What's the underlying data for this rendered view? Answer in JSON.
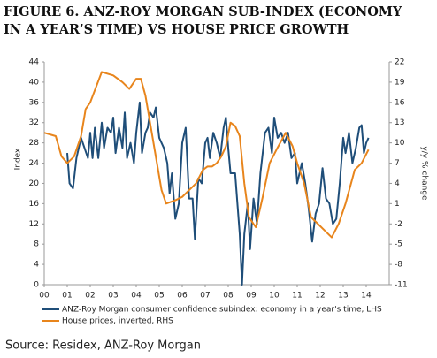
{
  "chart_data": {
    "type": "line",
    "title": [
      "FIGURE 6. ANZ-ROY MORGAN SUB-INDEX (ECONOMY",
      "IN A YEAR’S TIME) VS HOUSE PRICE GROWTH"
    ],
    "ylabel": "Index",
    "y2label": "y/y % change",
    "source": "Source: Residex, ANZ-Roy Morgan",
    "xlim": [
      2000,
      2015
    ],
    "xticks": [
      {
        "value": 2000,
        "label": "00"
      },
      {
        "value": 2001,
        "label": "01"
      },
      {
        "value": 2002,
        "label": "02"
      },
      {
        "value": 2003,
        "label": "03"
      },
      {
        "value": 2004,
        "label": "04"
      },
      {
        "value": 2005,
        "label": "05"
      },
      {
        "value": 2006,
        "label": "06"
      },
      {
        "value": 2007,
        "label": "07"
      },
      {
        "value": 2008,
        "label": "08"
      },
      {
        "value": 2009,
        "label": "09"
      },
      {
        "value": 2010,
        "label": "10"
      },
      {
        "value": 2011,
        "label": "11"
      },
      {
        "value": 2012,
        "label": "12"
      },
      {
        "value": 2013,
        "label": "13"
      },
      {
        "value": 2014,
        "label": "14"
      }
    ],
    "ylim": [
      0,
      44
    ],
    "yticks": [
      0,
      4,
      8,
      12,
      16,
      20,
      24,
      28,
      32,
      36,
      40,
      44
    ],
    "y2lim": [
      -11,
      22
    ],
    "y2ticks": [
      -11,
      -8,
      -5,
      -2,
      1,
      4,
      7,
      10,
      13,
      16,
      19,
      22
    ],
    "legend": "bottom",
    "series": [
      {
        "name": "ANZ-Roy Morgan consumer confidence subindex: economy in a year's time, LHS",
        "color": "#1f4e79",
        "axis": "y",
        "x": [
          2001.0,
          2001.1,
          2001.25,
          2001.4,
          2001.6,
          2001.75,
          2001.9,
          2002.0,
          2002.1,
          2002.2,
          2002.35,
          2002.5,
          2002.6,
          2002.75,
          2002.9,
          2003.0,
          2003.1,
          2003.25,
          2003.4,
          2003.5,
          2003.6,
          2003.75,
          2003.9,
          2004.0,
          2004.15,
          2004.25,
          2004.4,
          2004.5,
          2004.6,
          2004.75,
          2004.85,
          2005.0,
          2005.2,
          2005.35,
          2005.45,
          2005.55,
          2005.7,
          2005.85,
          2006.0,
          2006.15,
          2006.3,
          2006.45,
          2006.55,
          2006.7,
          2006.85,
          2007.0,
          2007.1,
          2007.2,
          2007.35,
          2007.5,
          2007.65,
          2007.8,
          2007.9,
          2008.0,
          2008.1,
          2008.3,
          2008.5,
          2008.6,
          2008.7,
          2008.85,
          2008.95,
          2009.1,
          2009.25,
          2009.4,
          2009.6,
          2009.75,
          2009.9,
          2010.0,
          2010.15,
          2010.3,
          2010.45,
          2010.6,
          2010.75,
          2010.9,
          2011.0,
          2011.2,
          2011.35,
          2011.5,
          2011.65,
          2011.8,
          2011.95,
          2012.1,
          2012.25,
          2012.4,
          2012.55,
          2012.7,
          2012.85,
          2013.0,
          2013.1,
          2013.25,
          2013.4,
          2013.55,
          2013.7,
          2013.8,
          2013.9,
          2014.0,
          2014.1
        ],
        "values": [
          26,
          20,
          19,
          25,
          29,
          27,
          25,
          30,
          25,
          31,
          25,
          32,
          27,
          31,
          30,
          33,
          26,
          31,
          27,
          34,
          25,
          28,
          24,
          30,
          36,
          26,
          30,
          31,
          34,
          33,
          35,
          29,
          27,
          24,
          18,
          22,
          13,
          16,
          28,
          31,
          17,
          17,
          9,
          21,
          20,
          28,
          29,
          25,
          30,
          28,
          25,
          31,
          33,
          27,
          22,
          22,
          10,
          0,
          10,
          16,
          7,
          17,
          12,
          22,
          30,
          31,
          26,
          33,
          29,
          30,
          28,
          30,
          25,
          26,
          20,
          24,
          20,
          15,
          8.5,
          14,
          16,
          23,
          17,
          16,
          12,
          13,
          20,
          29,
          26,
          30,
          24,
          27,
          31,
          31.5,
          26,
          28,
          29
        ]
      },
      {
        "name": "House prices, inverted, RHS",
        "color": "#e8851c",
        "axis": "y2",
        "x": [
          2000.0,
          2000.5,
          2000.75,
          2001.0,
          2001.3,
          2001.6,
          2001.8,
          2002.0,
          2002.5,
          2003.0,
          2003.4,
          2003.7,
          2004.0,
          2004.2,
          2004.4,
          2004.8,
          2005.1,
          2005.3,
          2005.7,
          2006.0,
          2006.3,
          2006.6,
          2006.9,
          2007.1,
          2007.3,
          2007.5,
          2007.7,
          2007.9,
          2008.1,
          2008.3,
          2008.5,
          2008.7,
          2008.9,
          2009.2,
          2009.5,
          2009.8,
          2010.1,
          2010.5,
          2010.8,
          2011.0,
          2011.3,
          2011.6,
          2011.9,
          2012.2,
          2012.5,
          2012.8,
          2013.1,
          2013.5,
          2013.8,
          2014.1
        ],
        "values": [
          11.5,
          11,
          8,
          7,
          8,
          11,
          15,
          16,
          20.5,
          20,
          19,
          18,
          19.5,
          19.5,
          17,
          9,
          3,
          1,
          1.5,
          2,
          3,
          4,
          6,
          6.5,
          6.5,
          7,
          8,
          9.5,
          13,
          12.5,
          11,
          4,
          -1,
          -2.5,
          2,
          7,
          9,
          11.5,
          9.5,
          7,
          4,
          -1,
          -2,
          -3,
          -4,
          -2,
          1,
          6,
          7,
          9
        ]
      }
    ]
  }
}
